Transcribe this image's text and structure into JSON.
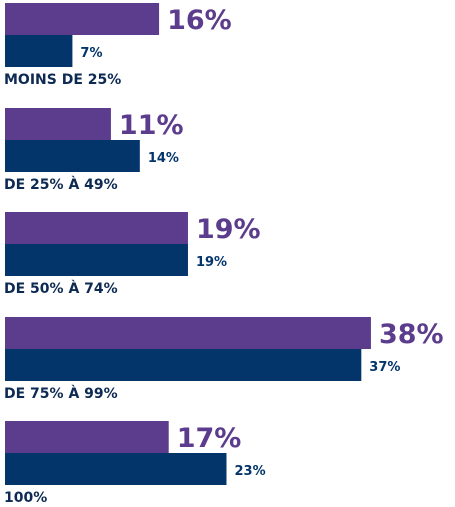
{
  "chart_data": {
    "type": "bar",
    "orientation": "horizontal",
    "categories": [
      "MOINS DE 25%",
      "DE 25% À 49%",
      "DE 50% À 74%",
      "DE 75% À 99%",
      "100%"
    ],
    "series": [
      {
        "values": [
          16,
          11,
          19,
          38,
          17
        ],
        "labels": [
          "16%",
          "11%",
          "19%",
          "38%",
          "17%"
        ]
      },
      {
        "values": [
          7,
          14,
          19,
          37,
          23
        ],
        "labels": [
          "7%",
          "14%",
          "19%",
          "37%",
          "23%"
        ]
      }
    ],
    "colors": {
      "series_1": "#5c3c8c",
      "series_2": "#03346a",
      "category_text": "#0d2a52"
    }
  }
}
